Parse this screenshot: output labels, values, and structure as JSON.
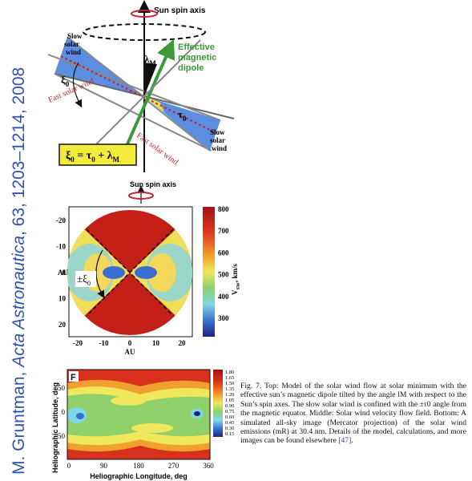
{
  "side_citation": {
    "author": "M. Gruntman, ",
    "journal": "Acta Astronautica",
    "details": ", 63, 1203–1214, 2008"
  },
  "top_diagram": {
    "axis_label": "Sun spin axis",
    "slow_left": [
      "Slow",
      "solar",
      "wind"
    ],
    "xi": [
      "ξ",
      "0"
    ],
    "lambda": [
      "λ",
      "M"
    ],
    "dipole_label": [
      "Effective",
      "magnetic",
      "dipole"
    ],
    "fast_upper": "Fast solar wind",
    "tau": [
      "τ",
      "0"
    ],
    "slow_right": [
      "Slow",
      "solar",
      "wind"
    ],
    "fast_lower": "Fast solar wind",
    "formula": [
      "ξ",
      "0",
      " = τ",
      "0",
      " + λ",
      "M"
    ]
  },
  "middle_panel": {
    "axis_label": "Sun spin axis",
    "yticks": [
      "-20",
      "-10",
      "0",
      "10",
      "20"
    ],
    "ylabel": "AU",
    "xticks": [
      "-20",
      "-10",
      "0",
      "10",
      "20"
    ],
    "xlabel": "AU",
    "colorbar_ticks": [
      "800",
      "700",
      "600",
      "500",
      "400",
      "300"
    ],
    "colorbar_label": [
      "V",
      "SW",
      ", km/s"
    ],
    "angle_label": [
      "±",
      "ξ",
      "0"
    ]
  },
  "bottom_panel": {
    "panel_letter": "F",
    "yticks": [
      "50",
      "0",
      "-50"
    ],
    "ylabel": "Heliographic Latitude, deg",
    "xticks": [
      "0",
      "90",
      "180",
      "270",
      "360"
    ],
    "xlabel": "Heliographic Longitude, deg",
    "colorbar_ticks": [
      "1.80",
      "1.65",
      "1.50",
      "1.35",
      "1.20",
      "1.05",
      "0.90",
      "0.75",
      "0.60",
      "0.45",
      "0.30",
      "0.15"
    ]
  },
  "caption": {
    "text": "Fig. 7. Top: Model of the solar wind flow at solar minimum with the effective sun’s magnetic dipole tilted by the angle lM with respect to the Sun’s spin axes. The slow solar wind is confined with the ±τ0 angle from the magnetic equator. Middle: Solar wind velocity flow field. Bottom: A simulated all-sky image (Mercator projection) of the solar wind emissions (mR) at 30.4 nm. Details of the model, calculations, and more images can be found elsewhere ",
    "ref": "[47]",
    "end": "."
  }
}
